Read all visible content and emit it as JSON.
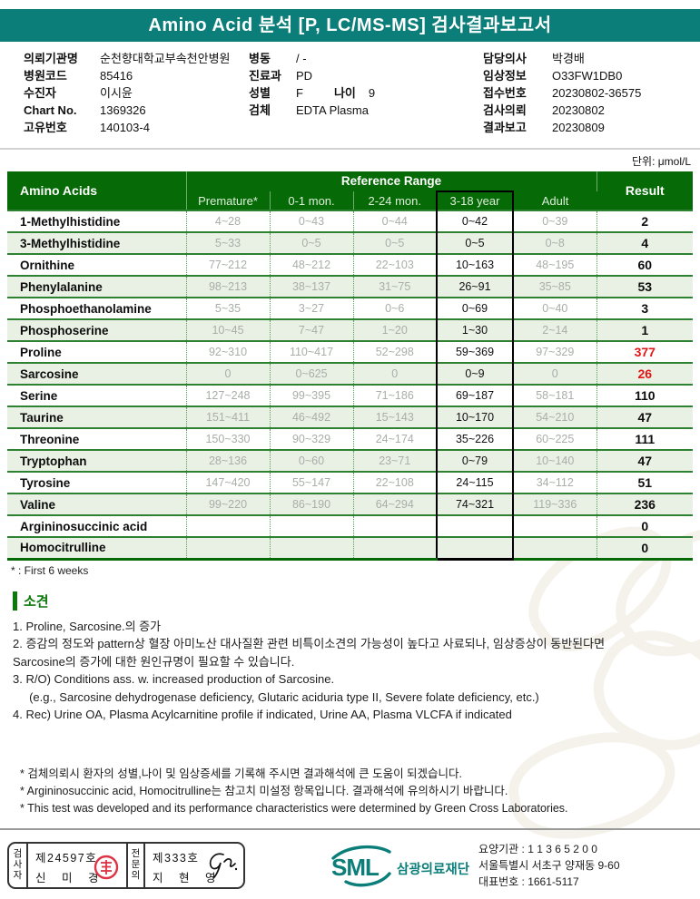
{
  "page": {
    "unit_label": "단위: μmol/L"
  },
  "colors": {
    "brand_teal": "#0b7e79",
    "table_green": "#066b06",
    "row_alt_green": "#e9f1e4",
    "abnormal_red": "#e41414",
    "ref_gray": "#a9aea8",
    "seal_red": "#dd3344"
  },
  "header": {
    "title": "Amino Acid 분석 [P, LC/MS-MS] 검사결과보고서"
  },
  "info": {
    "left": [
      {
        "label": "의뢰기관명",
        "value": "순천향대학교부속천안병원"
      },
      {
        "label": "병원코드",
        "value": "85416"
      },
      {
        "label": "수진자",
        "value": "이시윤"
      },
      {
        "label": "Chart No.",
        "value": "1369326"
      },
      {
        "label": "고유번호",
        "value": "140103-4"
      }
    ],
    "middle": [
      {
        "label": "병동",
        "value": "/ -"
      },
      {
        "label": "진료과",
        "value": "PD"
      },
      {
        "label": "성별",
        "value": "F",
        "label2": "나이",
        "value2": "9"
      },
      {
        "label": "검체",
        "value": "EDTA Plasma"
      }
    ],
    "right": [
      {
        "label": "담당의사",
        "value": "박경배"
      },
      {
        "label": "임상정보",
        "value": "O33FW1DB0"
      },
      {
        "label": "접수번호",
        "value": "20230802-36575"
      },
      {
        "label": "검사의뢰",
        "value": "20230802"
      },
      {
        "label": "결과보고",
        "value": "20230809"
      }
    ]
  },
  "table": {
    "col_amino": "Amino Acids",
    "col_ref_group": "Reference Range",
    "col_result": "Result",
    "sub_headers": [
      "Premature*",
      "0-1 mon.",
      "2-24 mon.",
      "3-18 year",
      "Adult"
    ],
    "highlighted_sub_header": "3-18 year",
    "footnote": "* : First 6 weeks",
    "rows": [
      {
        "name": "1-Methylhistidine",
        "refs": [
          "4~28",
          "0~43",
          "0~44",
          "0~42",
          "0~39"
        ],
        "result": "2",
        "flag": "normal"
      },
      {
        "name": "3-Methylhistidine",
        "refs": [
          "5~33",
          "0~5",
          "0~5",
          "0~5",
          "0~8"
        ],
        "result": "4",
        "flag": "normal"
      },
      {
        "name": "Ornithine",
        "refs": [
          "77~212",
          "48~212",
          "22~103",
          "10~163",
          "48~195"
        ],
        "result": "60",
        "flag": "normal"
      },
      {
        "name": "Phenylalanine",
        "refs": [
          "98~213",
          "38~137",
          "31~75",
          "26~91",
          "35~85"
        ],
        "result": "53",
        "flag": "normal"
      },
      {
        "name": "Phosphoethanolamine",
        "refs": [
          "5~35",
          "3~27",
          "0~6",
          "0~69",
          "0~40"
        ],
        "result": "3",
        "flag": "normal"
      },
      {
        "name": "Phosphoserine",
        "refs": [
          "10~45",
          "7~47",
          "1~20",
          "1~30",
          "2~14"
        ],
        "result": "1",
        "flag": "normal"
      },
      {
        "name": "Proline",
        "refs": [
          "92~310",
          "110~417",
          "52~298",
          "59~369",
          "97~329"
        ],
        "result": "377",
        "flag": "high"
      },
      {
        "name": "Sarcosine",
        "refs": [
          "0",
          "0~625",
          "0",
          "0~9",
          "0"
        ],
        "result": "26",
        "flag": "high"
      },
      {
        "name": "Serine",
        "refs": [
          "127~248",
          "99~395",
          "71~186",
          "69~187",
          "58~181"
        ],
        "result": "110",
        "flag": "normal"
      },
      {
        "name": "Taurine",
        "refs": [
          "151~411",
          "46~492",
          "15~143",
          "10~170",
          "54~210"
        ],
        "result": "47",
        "flag": "normal"
      },
      {
        "name": "Threonine",
        "refs": [
          "150~330",
          "90~329",
          "24~174",
          "35~226",
          "60~225"
        ],
        "result": "111",
        "flag": "normal"
      },
      {
        "name": "Tryptophan",
        "refs": [
          "28~136",
          "0~60",
          "23~71",
          "0~79",
          "10~140"
        ],
        "result": "47",
        "flag": "normal"
      },
      {
        "name": "Tyrosine",
        "refs": [
          "147~420",
          "55~147",
          "22~108",
          "24~115",
          "34~112"
        ],
        "result": "51",
        "flag": "normal"
      },
      {
        "name": "Valine",
        "refs": [
          "99~220",
          "86~190",
          "64~294",
          "74~321",
          "119~336"
        ],
        "result": "236",
        "flag": "normal"
      },
      {
        "name": "Argininosuccinic acid",
        "refs": [
          "",
          "",
          "",
          "",
          ""
        ],
        "result": "0",
        "flag": "normal"
      },
      {
        "name": "Homocitrulline",
        "refs": [
          "",
          "",
          "",
          "",
          ""
        ],
        "result": "0",
        "flag": "normal"
      }
    ]
  },
  "findings": {
    "title": "소견",
    "lines": [
      "1. Proline, Sarcosine.의 증가",
      "2. 증감의 정도와 pattern상 혈장 아미노산 대사질환 관련 비특이소견의 가능성이 높다고 사료되나, 임상증상이 동반된다면",
      "Sarcosine의 증가에 대한 원인규명이 필요할 수 있습니다.",
      "3. R/O) Conditions ass. w. increased production of Sarcosine.",
      "     (e.g., Sarcosine dehydrogenase deficiency, Glutaric aciduria type II, Severe folate deficiency, etc.)",
      "4. Rec) Urine OA, Plasma Acylcarnitine profile if indicated, Urine AA, Plasma VLCFA if indicated"
    ]
  },
  "footnotes": [
    "* 검체의뢰시 환자의 성별,나이 및 임상증세를 기록해 주시면 결과해석에 큰 도움이 되겠습니다.",
    "* Argininosuccinic acid, Homocitrulline는 참고치 미설정 항목입니다. 결과해석에 유의하시기 바랍니다.",
    "* This test was developed and its performance characteristics were determined by Green Cross Laboratories."
  ],
  "footer": {
    "examiner_label": "검사자",
    "examiner_no": "제24597호",
    "examiner_name": "신 미 경",
    "specialist_label": "전문의",
    "specialist_no": "제333호",
    "specialist_name": "지 현 영",
    "logo_text": "SML",
    "org_name": "삼광의료재단",
    "org_lines": [
      "요양기관 : 1 1 3 6 5 2 0 0",
      "서울특별시 서초구 양재동 9-60",
      "대표번호 : 1661-5117"
    ]
  }
}
